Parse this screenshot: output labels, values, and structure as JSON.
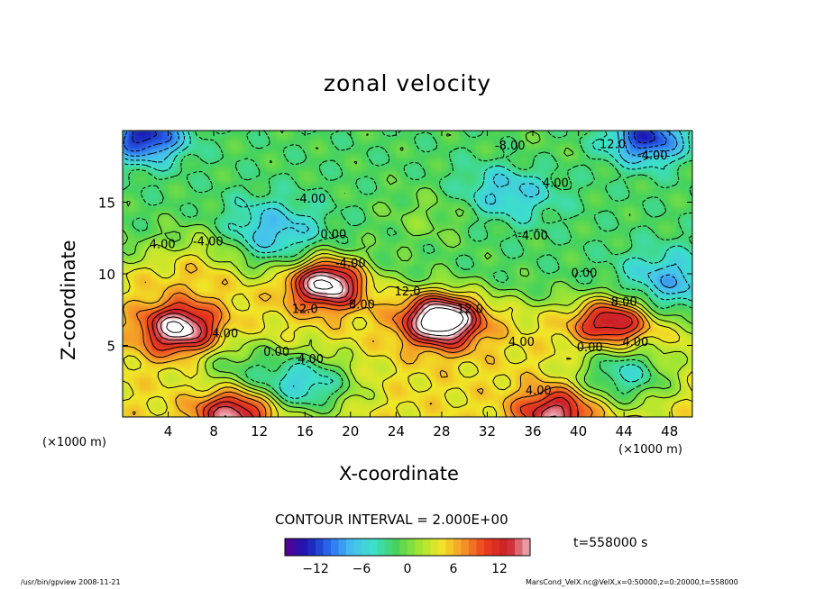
{
  "chart_data": {
    "type": "heatmap",
    "title": "zonal velocity",
    "xlabel": "X-coordinate",
    "ylabel": "Z-coordinate",
    "x_unit": "(×1000 m)",
    "xlim": [
      0,
      50
    ],
    "ylim": [
      0,
      20
    ],
    "x_ticks": [
      4,
      8,
      12,
      16,
      20,
      24,
      28,
      32,
      36,
      40,
      44,
      48
    ],
    "y_ticks": [
      5,
      10,
      15
    ],
    "contour_interval_label": "CONTOUR INTERVAL = 2.000E+00",
    "colorbar": {
      "range": [
        -16,
        16
      ],
      "ticks": [
        -12,
        -6,
        0,
        6,
        12
      ],
      "colors": [
        "#5a0090",
        "#1a1ab4",
        "#2a6cf0",
        "#46c0f0",
        "#3ce0c8",
        "#46d25a",
        "#a0e632",
        "#f0e628",
        "#f59628",
        "#eb3c1e",
        "#c81e28",
        "#f0b4be"
      ]
    },
    "features": [
      {
        "x": 28,
        "z": 6.8,
        "u": 18
      },
      {
        "x": 18,
        "z": 9.5,
        "u": 17
      },
      {
        "x": 5,
        "z": 6.2,
        "u": 14
      },
      {
        "x": 43,
        "z": 6.8,
        "u": 12
      },
      {
        "x": 9.8,
        "z": 0.3,
        "u": 12
      },
      {
        "x": 38,
        "z": 0.3,
        "u": 11
      },
      {
        "x": 2,
        "z": 19.6,
        "u": -12
      },
      {
        "x": 16,
        "z": 2.3,
        "u": -10
      },
      {
        "x": 46,
        "z": 19.5,
        "u": -11
      },
      {
        "x": 44,
        "z": 3,
        "u": -9
      },
      {
        "x": 13,
        "z": 13,
        "u": -6
      },
      {
        "x": 10,
        "z": 3.5,
        "u": -5
      },
      {
        "x": 34,
        "z": 16,
        "u": -6
      },
      {
        "x": 48,
        "z": 9.5,
        "u": -6
      },
      {
        "x": 35,
        "z": 17.5,
        "u": 2
      },
      {
        "x": 27,
        "z": 14,
        "u": 2
      },
      {
        "x": 7,
        "z": 11.5,
        "u": 4
      }
    ],
    "contour_labels": [
      {
        "x": 34,
        "z": 18.9,
        "text": "-8.00"
      },
      {
        "x": 43,
        "z": 19,
        "text": "12.0"
      },
      {
        "x": 46.5,
        "z": 18.2,
        "text": "-4.00"
      },
      {
        "x": 38,
        "z": 16.3,
        "text": "4.00"
      },
      {
        "x": 16.5,
        "z": 15.2,
        "text": "-4.00"
      },
      {
        "x": 3.5,
        "z": 12,
        "text": "4.00"
      },
      {
        "x": 7.5,
        "z": 12.2,
        "text": "-4.00"
      },
      {
        "x": 18.5,
        "z": 12.7,
        "text": "0.00"
      },
      {
        "x": 36,
        "z": 12.6,
        "text": "-4.00"
      },
      {
        "x": 20,
        "z": 10.7,
        "text": "-4.00"
      },
      {
        "x": 40.5,
        "z": 10,
        "text": "0.00"
      },
      {
        "x": 25,
        "z": 8.7,
        "text": "12.0"
      },
      {
        "x": 16,
        "z": 7.5,
        "text": "12.0"
      },
      {
        "x": 21,
        "z": 7.8,
        "text": "8.00"
      },
      {
        "x": 30.5,
        "z": 7.5,
        "text": "12.0"
      },
      {
        "x": 44,
        "z": 8,
        "text": "8.00"
      },
      {
        "x": 9,
        "z": 5.8,
        "text": "4.00"
      },
      {
        "x": 13.5,
        "z": 4.5,
        "text": "0.00"
      },
      {
        "x": 16.5,
        "z": 4,
        "text": "4.00"
      },
      {
        "x": 35,
        "z": 5.2,
        "text": "4.00"
      },
      {
        "x": 41,
        "z": 4.8,
        "text": "0.00"
      },
      {
        "x": 45,
        "z": 5.2,
        "text": "4.00"
      },
      {
        "x": 36.5,
        "z": 1.8,
        "text": "4.00"
      }
    ]
  },
  "time_label": "t=558000 s",
  "footer_left": "/usr/bin/gpview  2008-11-21",
  "footer_right": "MarsCond_VelX.nc@VelX,x=0:50000,z=0:20000,t=558000"
}
